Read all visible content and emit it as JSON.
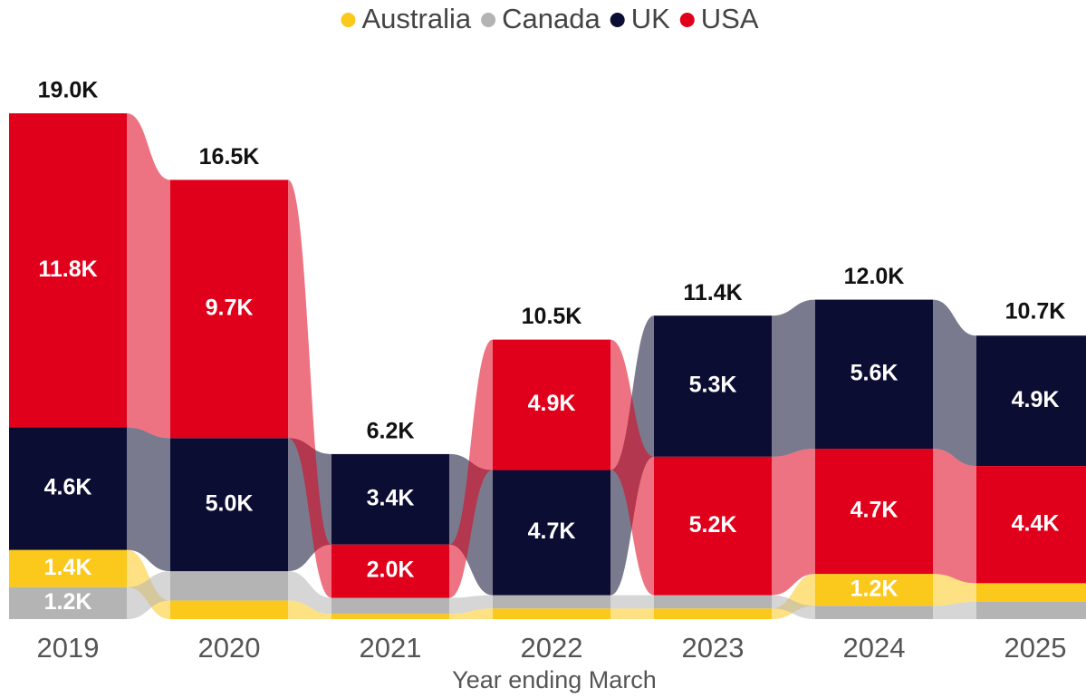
{
  "chart_data": {
    "type": "ribbon",
    "x_label": "Year ending March",
    "categories": [
      "2019",
      "2020",
      "2021",
      "2022",
      "2023",
      "2024",
      "2025"
    ],
    "series": [
      {
        "name": "Australia",
        "color": "#fbc81c",
        "values": [
          1400,
          700,
          200,
          400,
          400,
          1200,
          700
        ],
        "value_labels": [
          "1.4K",
          null,
          null,
          null,
          null,
          "1.2K",
          null
        ]
      },
      {
        "name": "Canada",
        "color": "#b4b4b4",
        "values": [
          1200,
          1100,
          600,
          500,
          500,
          500,
          650
        ],
        "value_labels": [
          "1.2K",
          null,
          null,
          null,
          null,
          null,
          null
        ]
      },
      {
        "name": "UK",
        "color": "#0c0d33",
        "values": [
          4600,
          5000,
          3400,
          4700,
          5300,
          5600,
          4900
        ],
        "value_labels": [
          "4.6K",
          "5.0K",
          "3.4K",
          "4.7K",
          "5.3K",
          "5.6K",
          "4.9K"
        ]
      },
      {
        "name": "USA",
        "color": "#e0001b",
        "values": [
          11800,
          9700,
          2000,
          4900,
          5200,
          4700,
          4400
        ],
        "value_labels": [
          "11.8K",
          "9.7K",
          "2.0K",
          "4.9K",
          "5.2K",
          "4.7K",
          "4.4K"
        ]
      }
    ],
    "totals": [
      19000,
      16500,
      6200,
      10500,
      11400,
      12000,
      10700
    ],
    "total_labels": [
      "19.0K",
      "16.5K",
      "6.2K",
      "10.5K",
      "11.4K",
      "12.0K",
      "10.7K"
    ],
    "legend": "top"
  }
}
